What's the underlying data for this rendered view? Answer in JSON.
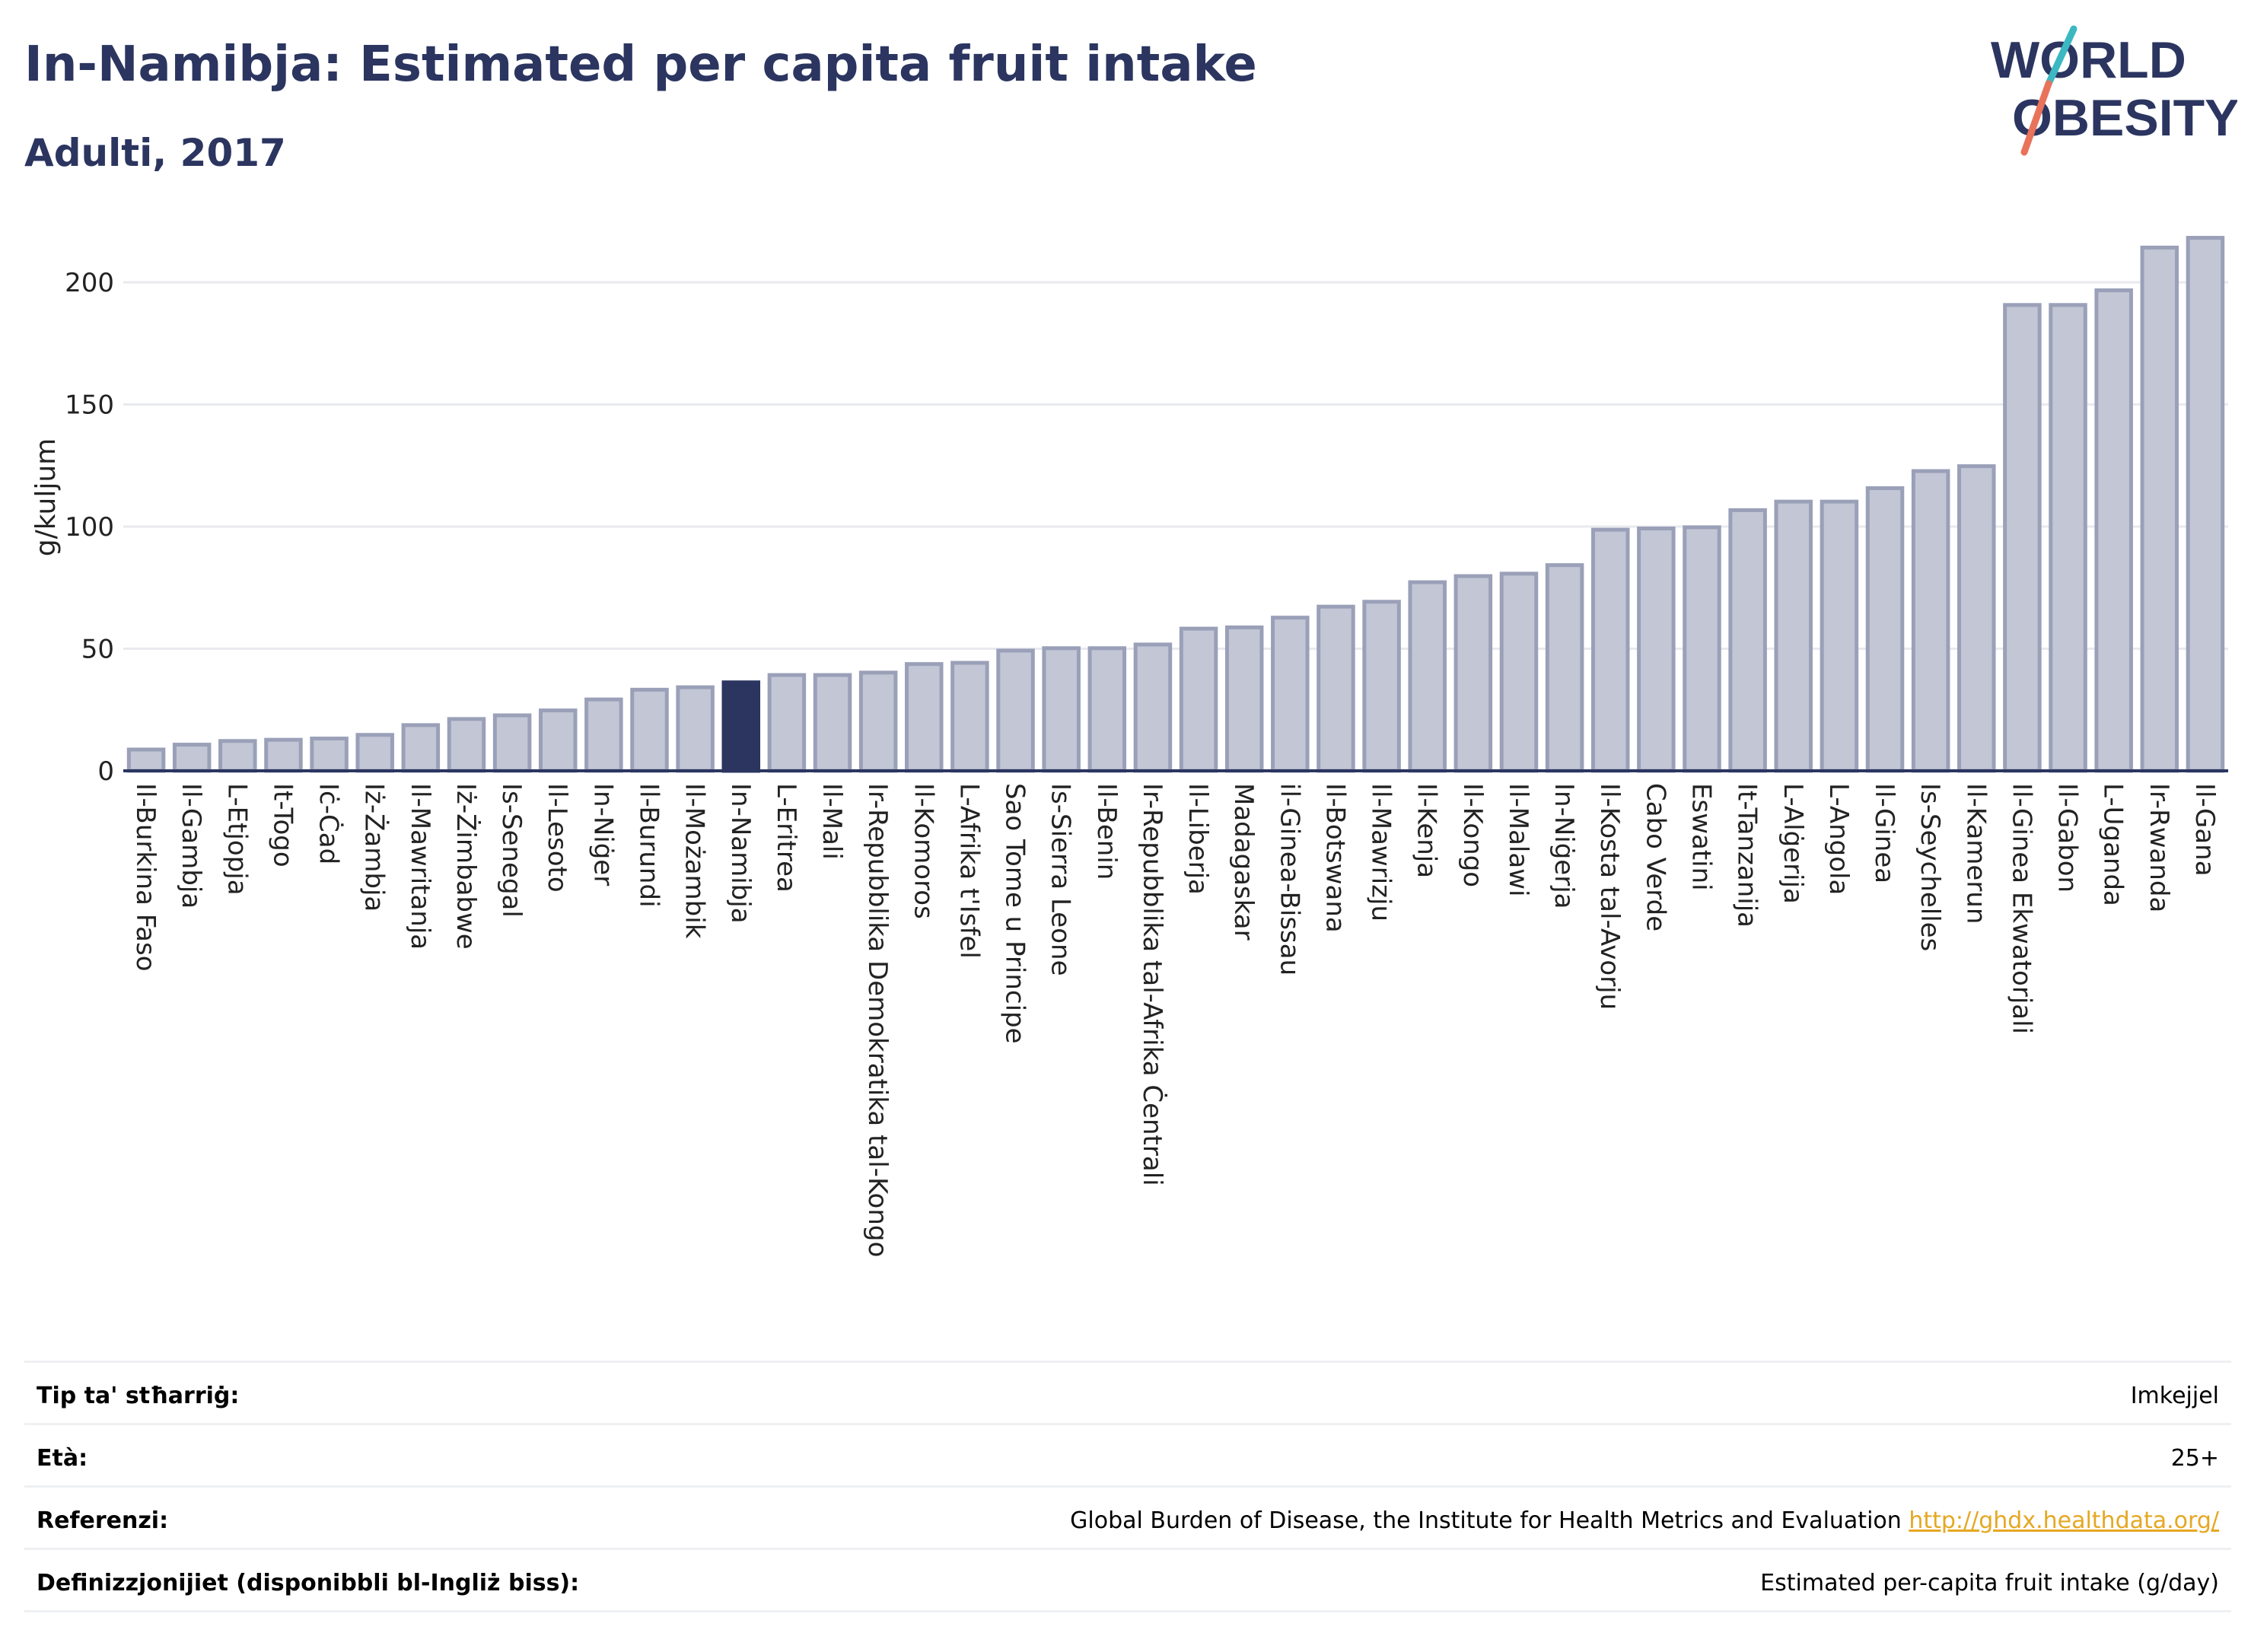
{
  "header": {
    "title": "In-Namibja: Estimated per capita fruit intake",
    "subtitle": "Adulti, 2017"
  },
  "logo": {
    "line1": "WORLD",
    "line2": "OBESITY"
  },
  "colors": {
    "bar": "#c2c6d5",
    "bar_edge": "#9aa0b8",
    "highlight": "#2b3560",
    "axis": "#2b3560",
    "grid": "#e8eaee",
    "logo_slash_teal": "#3bb8c1",
    "logo_slash_red": "#e8735a"
  },
  "chart_data": {
    "type": "bar",
    "ylabel": "g/kuljum",
    "ylim": [
      0,
      225
    ],
    "yticks": [
      0,
      50,
      100,
      150,
      200
    ],
    "grid": true,
    "highlight": "In-Namibja",
    "categories": [
      "Il-Burkina Faso",
      "Il-Gambja",
      "L-Etjopja",
      "It-Togo",
      "Iċ-Ċad",
      "Iż-Żambja",
      "Il-Mawritanja",
      "Iż-Żimbabwe",
      "Is-Senegal",
      "Il-Lesoto",
      "In-Niġer",
      "Il-Burundi",
      "Il-Możambik",
      "In-Namibja",
      "L-Eritrea",
      "Il-Mali",
      "Ir-Repubblika Demokratika tal-Kongo",
      "Il-Komoros",
      "L-Afrika t'Isfel",
      "Sao Tome u Principe",
      "Is-Sierra Leone",
      "Il-Benin",
      "Ir-Repubblika tal-Afrika Ċentrali",
      "Il-Liberja",
      "Madagaskar",
      "il-Ginea-Bissau",
      "Il-Botswana",
      "Il-Mawrizju",
      "Il-Kenja",
      "Il-Kongo",
      "Il-Malawi",
      "In-Niġerja",
      "Il-Kosta tal-Avorju",
      "Cabo Verde",
      "Eswatini",
      "It-Tanzanija",
      "L-Alġerija",
      "L-Angola",
      "Il-Ginea",
      "Is-Seychelles",
      "Il-Kamerun",
      "Il-Ginea Ekwatorjali",
      "Il-Gabon",
      "L-Uganda",
      "Ir-Rwanda",
      "Il-Gana"
    ],
    "values": [
      9.5,
      11.5,
      13,
      13.5,
      14,
      15.5,
      19.5,
      22,
      23.5,
      25.5,
      30,
      34,
      35,
      37,
      40,
      40,
      41,
      44.5,
      45,
      50,
      51,
      51,
      52.5,
      59,
      59.5,
      63.5,
      68,
      70,
      78,
      80.5,
      81.5,
      85,
      99.5,
      100,
      100.5,
      107.5,
      111,
      111,
      116.5,
      123.5,
      125.5,
      191.5,
      191.5,
      197.5,
      215,
      219
    ]
  },
  "meta": {
    "rows": [
      {
        "label": "Tip ta' stħarriġ:",
        "value": "Imkejjel"
      },
      {
        "label": "Età:",
        "value": "25+"
      },
      {
        "label": "Referenzi:",
        "value": "Global Burden of Disease, the Institute for Health Metrics and Evaluation ",
        "link": "http://ghdx.healthdata.org/"
      },
      {
        "label": "Definizzjonijiet (disponibbli bl-Ingliż biss):",
        "value": "Estimated per-capita fruit intake (g/day)"
      }
    ]
  }
}
